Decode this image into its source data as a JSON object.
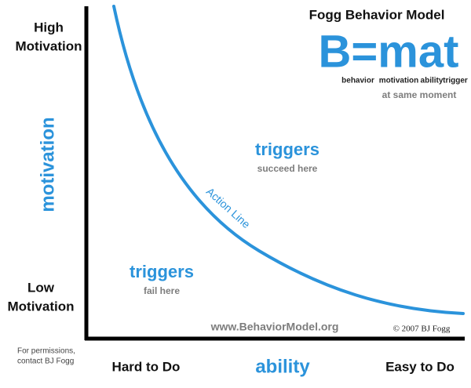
{
  "header": {
    "title": "Fogg Behavior Model"
  },
  "formula": {
    "text": "B=mat",
    "words": [
      "behavior",
      "motivation",
      "ability",
      "trigger"
    ],
    "note": "at same moment"
  },
  "y_axis": {
    "high": [
      "High",
      "Motivation"
    ],
    "label": "motivation",
    "low": [
      "Low",
      "Motivation"
    ]
  },
  "x_axis": {
    "low": "Hard to Do",
    "label": "ability",
    "high": "Easy to Do"
  },
  "regions": [
    {
      "title": "triggers",
      "subtitle": "succeed here"
    },
    {
      "title": "triggers",
      "subtitle": "fail here"
    }
  ],
  "curve": {
    "label": "Action Line"
  },
  "footer": {
    "website": "www.BehaviorModel.org",
    "copyright": "© 2007 BJ Fogg",
    "permissions": [
      "For permissions,",
      "contact BJ Fogg"
    ]
  }
}
